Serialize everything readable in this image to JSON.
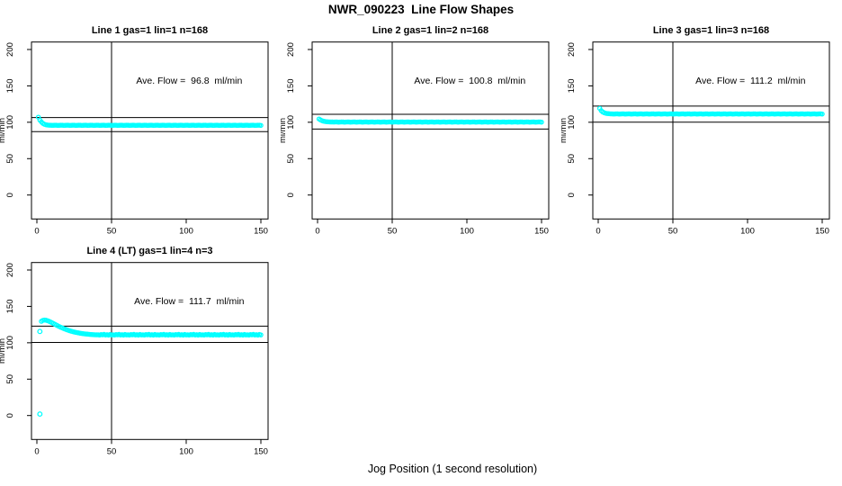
{
  "figure_title": "NWR_090223  Line Flow Shapes",
  "xlabel": "Jog Position (1 second resolution)",
  "colors": {
    "points": "#00FFFF",
    "lines": "#000000",
    "text": "#000000",
    "bg": "#FFFFFF"
  },
  "chart_data": [
    {
      "type": "scatter",
      "title": "Line 1 gas=1 lin=1 n=168",
      "ylabel": "ml/min",
      "annotation": "Ave. Flow =  96.8  ml/min",
      "ave_flow": 96.8,
      "xlim": [
        0,
        150
      ],
      "ylim": [
        0,
        200
      ],
      "xticks": [
        0,
        50,
        100,
        150
      ],
      "yticks": [
        0,
        50,
        100,
        150,
        200
      ],
      "vline_x": 50,
      "hlines": [
        106.5,
        87.1
      ],
      "x_start": 1,
      "x_step": 1,
      "y": [
        107,
        103,
        100.5,
        98.5,
        97.3,
        96.6,
        96.2,
        96,
        95.9,
        95.8,
        95.8,
        96,
        95.9,
        95.7,
        95.8,
        96,
        95.9,
        95.7,
        95.8,
        96,
        95.9,
        95.7,
        95.8,
        96,
        95.9,
        95.7,
        95.8,
        96,
        95.9,
        95.7,
        95.8,
        96,
        95.9,
        95.7,
        95.8,
        96,
        95.9,
        95.7,
        95.8,
        96,
        95.9,
        95.7,
        95.8,
        96,
        95.9,
        95.7,
        95.8,
        96,
        95.9,
        95.7,
        95.8,
        96,
        95.9,
        95.7,
        95.8,
        96,
        95.9,
        95.7,
        95.8,
        96,
        95.9,
        95.7,
        95.8,
        96,
        95.9,
        95.7,
        95.8,
        96,
        95.9,
        95.7,
        95.8,
        96,
        95.9,
        95.7,
        95.8,
        96,
        95.9,
        95.7,
        95.8,
        96,
        95.9,
        95.7,
        95.8,
        96,
        95.9,
        95.7,
        95.8,
        96,
        95.9,
        95.7,
        95.8,
        96,
        95.9,
        95.7,
        95.8,
        96,
        95.9,
        95.7,
        95.8,
        96,
        95.9,
        95.7,
        95.8,
        96,
        95.9,
        95.7,
        95.8,
        96,
        95.9,
        95.7,
        95.8,
        96,
        95.9,
        95.7,
        95.8,
        96,
        95.9,
        95.7,
        95.8,
        96,
        95.9,
        95.7,
        95.8,
        96,
        95.9,
        95.7,
        95.8,
        96,
        95.9,
        95.7,
        95.8,
        96,
        95.9,
        95.7,
        95.8,
        96,
        95.9,
        95.7,
        95.8,
        96,
        95.9,
        95.7,
        95.8,
        96,
        95.9,
        95.7,
        95.8,
        96,
        95.9,
        95.7
      ],
      "outliers": []
    },
    {
      "type": "scatter",
      "title": "Line 2 gas=1 lin=2 n=168",
      "ylabel": "ml/min",
      "annotation": "Ave. Flow =  100.8  ml/min",
      "ave_flow": 100.8,
      "xlim": [
        0,
        150
      ],
      "ylim": [
        0,
        200
      ],
      "xticks": [
        0,
        50,
        100,
        150
      ],
      "yticks": [
        0,
        50,
        100,
        150,
        200
      ],
      "vline_x": 50,
      "hlines": [
        110.9,
        90.7
      ],
      "x_start": 1,
      "x_step": 1,
      "y": [
        104.5,
        103.2,
        102.2,
        101.5,
        101.1,
        100.8,
        100.6,
        100.5,
        100.4,
        100.4,
        100.3,
        100.5,
        100.4,
        100.2,
        100.3,
        100.5,
        100.4,
        100.2,
        100.3,
        100.5,
        100.4,
        100.2,
        100.3,
        100.5,
        100.4,
        100.2,
        100.3,
        100.5,
        100.4,
        100.2,
        100.3,
        100.5,
        100.4,
        100.2,
        100.3,
        100.5,
        100.4,
        100.2,
        100.3,
        100.5,
        100.4,
        100.2,
        100.3,
        100.5,
        100.4,
        100.2,
        100.3,
        100.5,
        100.4,
        100.2,
        100.3,
        100.5,
        100.4,
        100.2,
        100.3,
        100.5,
        100.4,
        100.2,
        100.3,
        100.5,
        100.4,
        100.2,
        100.3,
        100.5,
        100.4,
        100.2,
        100.3,
        100.5,
        100.4,
        100.2,
        100.3,
        100.5,
        100.4,
        100.2,
        100.3,
        100.5,
        100.4,
        100.2,
        100.3,
        100.5,
        100.4,
        100.2,
        100.3,
        100.5,
        100.4,
        100.2,
        100.3,
        100.5,
        100.4,
        100.2,
        100.3,
        100.5,
        100.4,
        100.2,
        100.3,
        100.5,
        100.4,
        100.2,
        100.3,
        100.5,
        100.4,
        100.2,
        100.3,
        100.5,
        100.4,
        100.2,
        100.3,
        100.5,
        100.4,
        100.2,
        100.3,
        100.5,
        100.4,
        100.2,
        100.3,
        100.5,
        100.4,
        100.2,
        100.3,
        100.5,
        100.4,
        100.2,
        100.3,
        100.5,
        100.4,
        100.2,
        100.3,
        100.5,
        100.4,
        100.2,
        100.3,
        100.5,
        100.4,
        100.2,
        100.3,
        100.5,
        100.4,
        100.2,
        100.3,
        100.5,
        100.4,
        100.2,
        100.3,
        100.5,
        100.4,
        100.2,
        100.3,
        100.5,
        100.4,
        100.2
      ],
      "outliers": []
    },
    {
      "type": "scatter",
      "title": "Line 3 gas=1 lin=3 n=168",
      "ylabel": "ml/min",
      "annotation": "Ave. Flow =  111.2  ml/min",
      "ave_flow": 111.2,
      "xlim": [
        0,
        150
      ],
      "ylim": [
        0,
        200
      ],
      "xticks": [
        0,
        50,
        100,
        150
      ],
      "yticks": [
        0,
        50,
        100,
        150,
        200
      ],
      "vline_x": 50,
      "hlines": [
        122.3,
        100.1
      ],
      "x_start": 1,
      "x_step": 1,
      "y": [
        119,
        116,
        114.2,
        113.1,
        112.4,
        112,
        111.8,
        111.6,
        111.5,
        111.4,
        111.4,
        111.6,
        111.5,
        111.3,
        111.4,
        111.6,
        111.5,
        111.3,
        111.4,
        111.6,
        111.5,
        111.3,
        111.4,
        111.6,
        111.5,
        111.3,
        111.4,
        111.6,
        111.5,
        111.3,
        111.4,
        111.6,
        111.5,
        111.3,
        111.4,
        111.6,
        111.5,
        111.3,
        111.4,
        111.6,
        111.5,
        111.3,
        111.4,
        111.6,
        111.5,
        111.3,
        111.4,
        111.6,
        111.5,
        111.3,
        111.4,
        111.6,
        111.5,
        111.3,
        111.4,
        111.6,
        111.5,
        111.3,
        111.4,
        111.6,
        111.5,
        111.3,
        111.4,
        111.6,
        111.5,
        111.3,
        111.4,
        111.6,
        111.5,
        111.3,
        111.4,
        111.6,
        111.5,
        111.3,
        111.4,
        111.6,
        111.5,
        111.3,
        111.4,
        111.6,
        111.5,
        111.3,
        111.4,
        111.6,
        111.5,
        111.3,
        111.4,
        111.6,
        111.5,
        111.3,
        111.4,
        111.6,
        111.5,
        111.3,
        111.4,
        111.6,
        111.5,
        111.3,
        111.4,
        111.6,
        111.5,
        111.3,
        111.4,
        111.6,
        111.5,
        111.3,
        111.4,
        111.6,
        111.5,
        111.3,
        111.4,
        111.6,
        111.5,
        111.3,
        111.4,
        111.6,
        111.5,
        111.3,
        111.4,
        111.6,
        111.5,
        111.3,
        111.4,
        111.6,
        111.5,
        111.3,
        111.4,
        111.6,
        111.5,
        111.3,
        111.4,
        111.6,
        111.5,
        111.3,
        111.4,
        111.6,
        111.5,
        111.3,
        111.4,
        111.6,
        111.5,
        111.3,
        111.4,
        111.6,
        111.5,
        111.3,
        111.4,
        111.6,
        111.5,
        111.3
      ],
      "outliers": []
    },
    {
      "type": "scatter",
      "title": "Line 4 (LT) gas=1 lin=4 n=3",
      "ylabel": "ml/min",
      "annotation": "Ave. Flow =  111.7  ml/min",
      "ave_flow": 111.7,
      "xlim": [
        0,
        150
      ],
      "ylim": [
        0,
        200
      ],
      "xticks": [
        0,
        50,
        100,
        150
      ],
      "yticks": [
        0,
        50,
        100,
        150,
        200
      ],
      "vline_x": 50,
      "hlines": [
        122.9,
        100.5
      ],
      "x_start": 3,
      "x_step": 1,
      "y": [
        129.5,
        130.8,
        131.2,
        131,
        130.4,
        129.6,
        128.7,
        127.7,
        126.6,
        125.5,
        124.4,
        123.3,
        122.3,
        121.3,
        120.4,
        119.5,
        118.7,
        117.9,
        117.2,
        116.5,
        115.9,
        115.3,
        114.8,
        114.3,
        113.9,
        113.5,
        113.1,
        112.8,
        112.5,
        112.2,
        112,
        111.8,
        111.6,
        111.4,
        111.3,
        111.1,
        111,
        110.9,
        111,
        110.6,
        111.3,
        110.9,
        111.5,
        110.7,
        111.1,
        110.5,
        111.4,
        110.8,
        111,
        110.6,
        111.3,
        110.9,
        111.5,
        110.7,
        111.1,
        110.5,
        111.4,
        110.8,
        111,
        110.6,
        111.3,
        110.9,
        111.5,
        110.7,
        111.1,
        110.5,
        111.4,
        110.8,
        111,
        110.6,
        111.3,
        110.9,
        111.5,
        110.7,
        111.1,
        110.5,
        111.4,
        110.8,
        111,
        110.6,
        111.3,
        110.9,
        111.5,
        110.7,
        111.1,
        110.5,
        111.4,
        110.8,
        111,
        110.6,
        111.3,
        110.9,
        111.5,
        110.7,
        111.1,
        110.5,
        111.4,
        110.8,
        111,
        110.6,
        111.3,
        110.9,
        111.5,
        110.7,
        111.1,
        110.5,
        111.4,
        110.8,
        111,
        110.6,
        111.3,
        110.9,
        111.5,
        110.7,
        111.1,
        110.5,
        111.4,
        110.8,
        111,
        110.6,
        111.3,
        110.9,
        111.5,
        110.7,
        111.1,
        110.5,
        111.4,
        110.8,
        111,
        110.6,
        111.3,
        110.9,
        111.5,
        110.7,
        111.1,
        110.5,
        111.4,
        110.8,
        111,
        110.6,
        111.3,
        110.9,
        111.5,
        110.7,
        111.1,
        110.5,
        111.4,
        110.8
      ],
      "outliers": [
        [
          2,
          115.5
        ],
        [
          2,
          2
        ]
      ]
    }
  ]
}
